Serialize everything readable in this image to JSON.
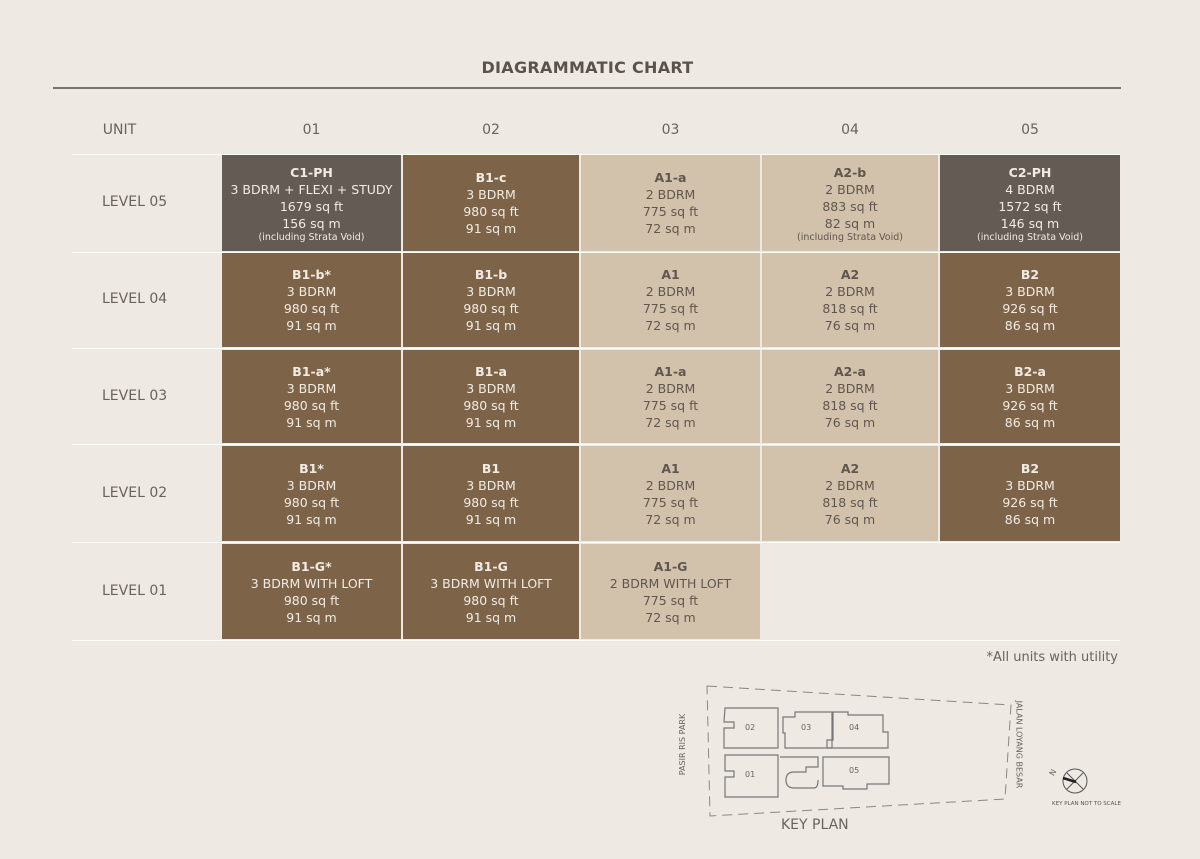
{
  "title": "DIAGRAMMATIC CHART",
  "header": {
    "unit": "UNIT",
    "columns": [
      "01",
      "02",
      "03",
      "04",
      "05"
    ]
  },
  "levels": [
    {
      "label": "LEVEL 05",
      "units": [
        {
          "code": "C1-PH",
          "type": "3 BDRM + FLEXI + STUDY",
          "sqft": "1679 sq ft",
          "sqm": "156 sq m",
          "note": "(including Strata Void)",
          "style": "ph"
        },
        {
          "code": "B1-c",
          "type": "3 BDRM",
          "sqft": "980 sq ft",
          "sqm": "91 sq m",
          "note": "",
          "style": "b"
        },
        {
          "code": "A1-a",
          "type": "2 BDRM",
          "sqft": "775 sq ft",
          "sqm": "72 sq m",
          "note": "",
          "style": "a"
        },
        {
          "code": "A2-b",
          "type": "2 BDRM",
          "sqft": "883 sq ft",
          "sqm": "82 sq m",
          "note": "(including Strata Void)",
          "style": "a"
        },
        {
          "code": "C2-PH",
          "type": "4 BDRM",
          "sqft": "1572 sq ft",
          "sqm": "146 sq m",
          "note": "(including Strata Void)",
          "style": "ph"
        }
      ]
    },
    {
      "label": "LEVEL 04",
      "units": [
        {
          "code": "B1-b*",
          "type": "3 BDRM",
          "sqft": "980 sq ft",
          "sqm": "91 sq m",
          "note": "",
          "style": "b"
        },
        {
          "code": "B1-b",
          "type": "3 BDRM",
          "sqft": "980 sq ft",
          "sqm": "91 sq m",
          "note": "",
          "style": "b"
        },
        {
          "code": "A1",
          "type": "2 BDRM",
          "sqft": "775 sq ft",
          "sqm": "72 sq m",
          "note": "",
          "style": "a"
        },
        {
          "code": "A2",
          "type": "2 BDRM",
          "sqft": "818 sq ft",
          "sqm": "76 sq m",
          "note": "",
          "style": "a"
        },
        {
          "code": "B2",
          "type": "3 BDRM",
          "sqft": "926 sq ft",
          "sqm": "86 sq m",
          "note": "",
          "style": "b"
        }
      ]
    },
    {
      "label": "LEVEL 03",
      "units": [
        {
          "code": "B1-a*",
          "type": "3 BDRM",
          "sqft": "980 sq ft",
          "sqm": "91 sq m",
          "note": "",
          "style": "b"
        },
        {
          "code": "B1-a",
          "type": "3 BDRM",
          "sqft": "980 sq ft",
          "sqm": "91 sq m",
          "note": "",
          "style": "b"
        },
        {
          "code": "A1-a",
          "type": "2 BDRM",
          "sqft": "775 sq ft",
          "sqm": "72 sq m",
          "note": "",
          "style": "a"
        },
        {
          "code": "A2-a",
          "type": "2 BDRM",
          "sqft": "818 sq ft",
          "sqm": "76 sq m",
          "note": "",
          "style": "a"
        },
        {
          "code": "B2-a",
          "type": "3 BDRM",
          "sqft": "926 sq ft",
          "sqm": "86 sq m",
          "note": "",
          "style": "b"
        }
      ]
    },
    {
      "label": "LEVEL 02",
      "units": [
        {
          "code": "B1*",
          "type": "3 BDRM",
          "sqft": "980 sq ft",
          "sqm": "91 sq m",
          "note": "",
          "style": "b"
        },
        {
          "code": "B1",
          "type": "3 BDRM",
          "sqft": "980 sq ft",
          "sqm": "91 sq m",
          "note": "",
          "style": "b"
        },
        {
          "code": "A1",
          "type": "2 BDRM",
          "sqft": "775 sq ft",
          "sqm": "72 sq m",
          "note": "",
          "style": "a"
        },
        {
          "code": "A2",
          "type": "2 BDRM",
          "sqft": "818 sq ft",
          "sqm": "76 sq m",
          "note": "",
          "style": "a"
        },
        {
          "code": "B2",
          "type": "3 BDRM",
          "sqft": "926 sq ft",
          "sqm": "86 sq m",
          "note": "",
          "style": "b"
        }
      ]
    },
    {
      "label": "LEVEL 01",
      "units": [
        {
          "code": "B1-G*",
          "type": "3 BDRM WITH LOFT",
          "sqft": "980 sq ft",
          "sqm": "91 sq m",
          "note": "",
          "style": "b"
        },
        {
          "code": "B1-G",
          "type": "3 BDRM WITH LOFT",
          "sqft": "980 sq ft",
          "sqm": "91 sq m",
          "note": "",
          "style": "b"
        },
        {
          "code": "A1-G",
          "type": "2 BDRM WITH LOFT",
          "sqft": "775 sq ft",
          "sqm": "72 sq m",
          "note": "",
          "style": "a"
        }
      ]
    }
  ],
  "footnote": "*All units with utility",
  "keyplan": {
    "label": "KEY PLAN",
    "road_left": "PASIR RIS PARK",
    "road_right": "JALAN LOYANG BESAR",
    "units": [
      "02",
      "03",
      "04",
      "01",
      "05"
    ],
    "north": "N",
    "scale_note": "KEY PLAN NOT TO SCALE"
  },
  "colors": {
    "penthouse": "#645b55",
    "brown": "#7d6449",
    "light": "#d2c1ab",
    "background": "#efe9e3"
  }
}
